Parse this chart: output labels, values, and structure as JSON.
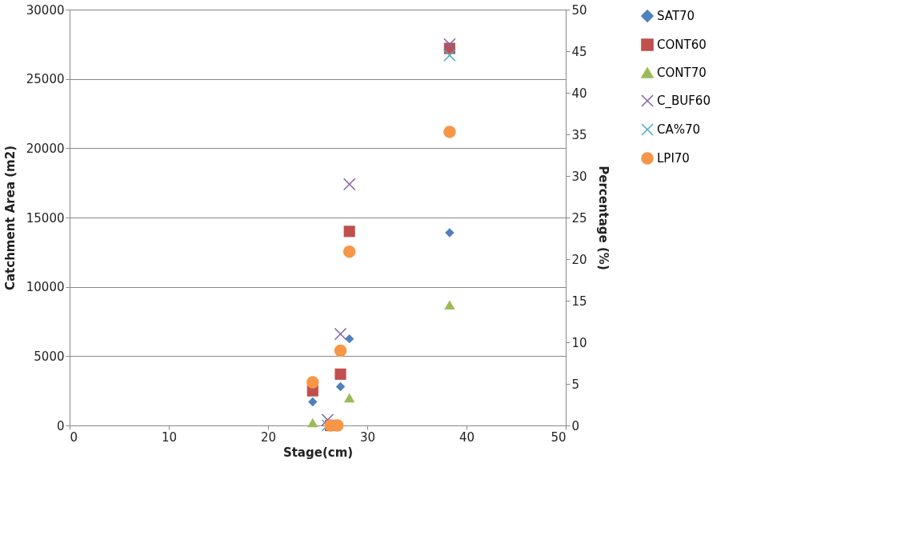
{
  "chart_data": {
    "type": "scatter",
    "xlabel": "Stage(cm)",
    "ylabel": "Catchment Area (m2)",
    "y2label": "Percentage (%)",
    "xlim": [
      0,
      50
    ],
    "xticks": [
      0,
      10,
      20,
      30,
      40,
      50
    ],
    "ylim": [
      0,
      30000
    ],
    "yticks": [
      0,
      5000,
      10000,
      15000,
      20000,
      25000,
      30000
    ],
    "y2lim": [
      0,
      50
    ],
    "y2ticks": [
      0,
      5,
      10,
      15,
      20,
      25,
      30,
      35,
      40,
      45,
      50
    ],
    "grid": "y",
    "legend": "right",
    "series": [
      {
        "name": "SAT70",
        "color": "#4f81bd",
        "marker": "diamond",
        "x": [
          24.5,
          27.3,
          28.2,
          38.3
        ],
        "values": [
          1700,
          2800,
          6250,
          13900
        ]
      },
      {
        "name": "CONT60",
        "color": "#c0504d",
        "marker": "square",
        "x": [
          24.5,
          26.3,
          27.3,
          28.2,
          38.3
        ],
        "values": [
          2500,
          0,
          3700,
          14000,
          27200
        ]
      },
      {
        "name": "CONT70",
        "color": "#9bbb59",
        "marker": "triangle",
        "x": [
          24.5,
          28.2,
          38.3
        ],
        "values": [
          200,
          2000,
          8700
        ]
      },
      {
        "name": "C_BUF60",
        "color": "#8064a2",
        "marker": "cross",
        "x": [
          26.0,
          27.3,
          28.2,
          38.3
        ],
        "values": [
          400,
          6600,
          17400,
          27500
        ]
      },
      {
        "name": "CA%70",
        "color": "#4bacc6",
        "marker": "cross",
        "axis": "y2",
        "x": [
          26.0,
          27.3,
          28.2,
          38.3
        ],
        "values": [
          0,
          null,
          null,
          44.5
        ]
      },
      {
        "name": "LPI70",
        "color": "#f79646",
        "marker": "circle",
        "axis": "y2",
        "x": [
          24.5,
          26.3,
          27.0,
          27.3,
          28.2,
          38.3
        ],
        "values": [
          5.2,
          0,
          0,
          9.0,
          20.9,
          35.3
        ]
      }
    ]
  }
}
